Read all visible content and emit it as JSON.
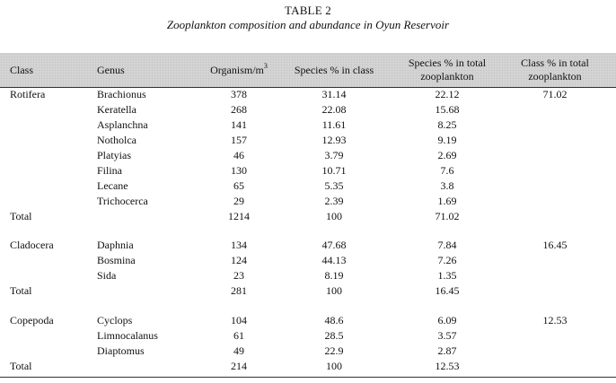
{
  "table": {
    "label": "TABLE 2",
    "caption": "Zooplankton composition and abundance in Oyun Reservoir",
    "headers": {
      "class": "Class",
      "genus": "Genus",
      "organism_base": "Organism/m",
      "organism_sup": "3",
      "species_pct_class": "Species % in class",
      "species_pct_total_line1": "Species % in total",
      "species_pct_total_line2": "zooplankton",
      "class_pct_total_line1": "Class % in total",
      "class_pct_total_line2": "zooplankton"
    },
    "groups": [
      {
        "class": "Rotifera",
        "class_pct": "71.02",
        "rows": [
          {
            "genus": "Brachionus",
            "organism": "378",
            "species_pct_class": "31.14",
            "species_pct_total": "22.12"
          },
          {
            "genus": "Keratella",
            "organism": "268",
            "species_pct_class": "22.08",
            "species_pct_total": "15.68"
          },
          {
            "genus": "Asplanchna",
            "organism": "141",
            "species_pct_class": "11.61",
            "species_pct_total": "8.25"
          },
          {
            "genus": "Notholca",
            "organism": "157",
            "species_pct_class": "12.93",
            "species_pct_total": "9.19"
          },
          {
            "genus": "Platyias",
            "organism": "46",
            "species_pct_class": "3.79",
            "species_pct_total": "2.69"
          },
          {
            "genus": "Filina",
            "organism": "130",
            "species_pct_class": "10.71",
            "species_pct_total": "7.6"
          },
          {
            "genus": "Lecane",
            "organism": "65",
            "species_pct_class": "5.35",
            "species_pct_total": "3.8"
          },
          {
            "genus": "Trichocerca",
            "organism": "29",
            "species_pct_class": "2.39",
            "species_pct_total": "1.69"
          }
        ],
        "total": {
          "label": "Total",
          "organism": "1214",
          "species_pct_class": "100",
          "species_pct_total": "71.02"
        }
      },
      {
        "class": "Cladocera",
        "class_pct": "16.45",
        "rows": [
          {
            "genus": "Daphnia",
            "organism": "134",
            "species_pct_class": "47.68",
            "species_pct_total": "7.84"
          },
          {
            "genus": "Bosmina",
            "organism": "124",
            "species_pct_class": "44.13",
            "species_pct_total": "7.26"
          },
          {
            "genus": "Sida",
            "organism": "23",
            "species_pct_class": "8.19",
            "species_pct_total": "1.35"
          }
        ],
        "total": {
          "label": "Total",
          "organism": "281",
          "species_pct_class": "100",
          "species_pct_total": "16.45"
        }
      },
      {
        "class": "Copepoda",
        "class_pct": "12.53",
        "rows": [
          {
            "genus": "Cyclops",
            "organism": "104",
            "species_pct_class": "48.6",
            "species_pct_total": "6.09"
          },
          {
            "genus": "Limnocalanus",
            "organism": "61",
            "species_pct_class": "28.5",
            "species_pct_total": "3.57"
          },
          {
            "genus": "Diaptomus",
            "organism": "49",
            "species_pct_class": "22.9",
            "species_pct_total": "2.87"
          }
        ],
        "total": {
          "label": "Total",
          "organism": "214",
          "species_pct_class": "100",
          "species_pct_total": "12.53"
        }
      }
    ]
  }
}
